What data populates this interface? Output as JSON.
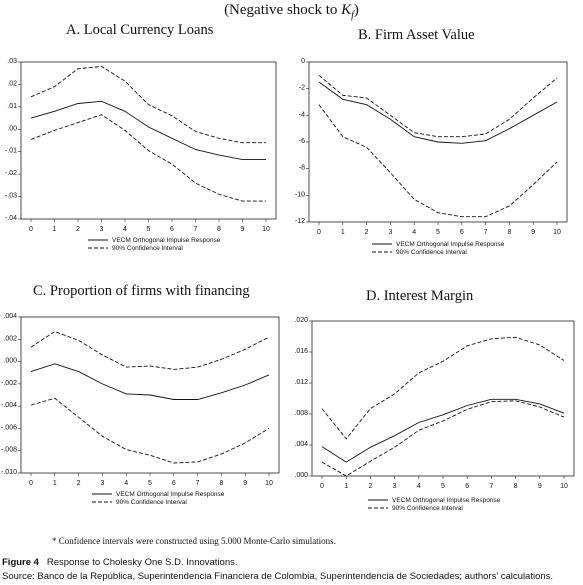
{
  "header": {
    "prefix": "(Negative shock to ",
    "var": "K",
    "sub": "f",
    "suffix": ")"
  },
  "note": "* Confidence intervals were constructed using 5.000 Monte-Carlo simulations.",
  "caption": {
    "label": "Figure 4",
    "text": "Response to Cholesky One S.D. Innovations."
  },
  "source": "Source: Banco de la República, Superintendencia Financiera de Colombia, Superintendencia de Sociedades; authors' calculations.",
  "chart_data": [
    {
      "type": "line",
      "title": "A. Local Currency Loans",
      "x": [
        0,
        1,
        2,
        3,
        4,
        5,
        6,
        7,
        8,
        9,
        10
      ],
      "xticks": [
        "0",
        "1",
        "2",
        "3",
        "4",
        "5",
        "6",
        "7",
        "8",
        "9",
        "10"
      ],
      "ylim": [
        -0.04,
        0.03
      ],
      "yticks": [
        0.03,
        0.02,
        0.01,
        0.0,
        -0.01,
        -0.02,
        -0.03,
        -0.04
      ],
      "ytick_labels": [
        ".03",
        ".02",
        ".01",
        ".00",
        "-.01",
        "-.02",
        "-.03",
        "-.04"
      ],
      "legend": [
        "VECM Orthogonal Impulse Response",
        "90% Confidence Interval"
      ],
      "series": [
        {
          "name": "VECM Orthogonal Impulse Response",
          "style": "solid",
          "x": [
            0,
            1,
            2,
            3,
            4,
            5,
            6,
            7,
            8,
            9,
            10
          ],
          "values": [
            0.005,
            0.008,
            0.0115,
            0.0125,
            0.008,
            0.001,
            -0.004,
            -0.009,
            -0.0115,
            -0.0135,
            -0.0135
          ]
        },
        {
          "name": "90% Confidence Interval",
          "style": "dashed",
          "x": [
            1,
            2,
            3,
            4,
            5,
            6,
            7,
            8,
            9,
            10
          ],
          "values": [
            0.019,
            0.027,
            0.028,
            0.0215,
            0.011,
            0.006,
            -0.001,
            -0.004,
            -0.006,
            -0.006
          ],
          "x0": 0,
          "v0": 0.0145
        },
        {
          "name": "90% Confidence Interval",
          "style": "dashed",
          "x": [
            0,
            1,
            2,
            3,
            4,
            5,
            6,
            7,
            8,
            9,
            10
          ],
          "values": [
            -0.0045,
            -0.0005,
            0.003,
            0.0065,
            -0.0005,
            -0.0095,
            -0.0155,
            -0.024,
            -0.029,
            -0.032,
            -0.032
          ]
        }
      ]
    },
    {
      "type": "line",
      "title": "B. Firm Asset Value",
      "x": [
        0,
        1,
        2,
        3,
        4,
        5,
        6,
        7,
        8,
        9,
        10
      ],
      "xticks": [
        "0",
        "1",
        "2",
        "3",
        "4",
        "5",
        "6",
        "7",
        "8",
        "9",
        "10"
      ],
      "ylim": [
        -12,
        0
      ],
      "yticks": [
        0,
        -2,
        -4,
        -6,
        -8,
        -10,
        -12
      ],
      "ytick_labels": [
        "0",
        "-2",
        "-4",
        "-6",
        "-8",
        "-10",
        "-12"
      ],
      "legend": [
        "VECM Orthogonal Impulse Response",
        "90% Confidence Interval"
      ],
      "series": [
        {
          "name": "VECM Orthogonal Impulse Response",
          "style": "solid",
          "x": [
            0,
            1,
            2,
            3,
            4,
            5,
            6,
            7,
            8,
            9,
            10
          ],
          "values": [
            -1.5,
            -2.8,
            -3.2,
            -4.3,
            -5.6,
            -6.0,
            -6.1,
            -5.9,
            -5.0,
            -4.0,
            -3.0
          ]
        },
        {
          "name": "90% Confidence Interval",
          "style": "dashed",
          "x": [
            0,
            1,
            2,
            3,
            4,
            5,
            6,
            7,
            8,
            9,
            10
          ],
          "values": [
            -1.0,
            -2.5,
            -2.7,
            -4.0,
            -5.3,
            -5.6,
            -5.6,
            -5.4,
            -4.3,
            -2.7,
            -1.2
          ]
        },
        {
          "name": "90% Confidence Interval",
          "style": "dashed",
          "x": [
            0,
            1,
            2,
            3,
            4,
            5,
            6,
            7,
            8,
            9,
            10
          ],
          "values": [
            -3.2,
            -5.6,
            -6.4,
            -8.3,
            -10.3,
            -11.3,
            -11.6,
            -11.6,
            -10.8,
            -9.2,
            -7.5
          ]
        }
      ]
    },
    {
      "type": "line",
      "title": "C. Proportion of firms with financing",
      "x": [
        0,
        1,
        2,
        3,
        4,
        5,
        6,
        7,
        8,
        9,
        10
      ],
      "xticks": [
        "0",
        "1",
        "2",
        "3",
        "4",
        "5",
        "6",
        "7",
        "8",
        "9",
        "10"
      ],
      "ylim": [
        -0.01,
        0.004
      ],
      "yticks": [
        0.004,
        0.002,
        0.0,
        -0.002,
        -0.004,
        -0.006,
        -0.008,
        -0.01
      ],
      "ytick_labels": [
        ".004",
        ".002",
        ".000",
        "-.002",
        "-.004",
        "-.006",
        "-.008",
        "-.010"
      ],
      "legend": [
        "VECM Orthogonal Impulse Response",
        "90% Confidence Interval"
      ],
      "series": [
        {
          "name": "VECM Orthogonal Impulse Response",
          "style": "solid",
          "x": [
            0,
            1,
            2,
            3,
            4,
            5,
            6,
            7,
            8,
            9,
            10
          ],
          "values": [
            -0.0009,
            -0.0002,
            -0.0009,
            -0.002,
            -0.0029,
            -0.003,
            -0.0034,
            -0.0034,
            -0.0028,
            -0.0021,
            -0.0012
          ]
        },
        {
          "name": "90% Confidence Interval",
          "style": "dashed",
          "x": [
            0,
            1,
            2,
            3,
            4,
            5,
            6,
            7,
            8,
            9,
            10
          ],
          "values": [
            0.0013,
            0.0027,
            0.0019,
            0.0006,
            -0.0005,
            -0.0004,
            -0.0007,
            -0.0005,
            0.0002,
            0.0011,
            0.0022
          ]
        },
        {
          "name": "90% Confidence Interval",
          "style": "dashed",
          "x": [
            0,
            1,
            2,
            3,
            4,
            5,
            6,
            7,
            8,
            9,
            10
          ],
          "values": [
            -0.0039,
            -0.0033,
            -0.005,
            -0.0067,
            -0.0079,
            -0.0084,
            -0.0091,
            -0.009,
            -0.0083,
            -0.0073,
            -0.006
          ]
        }
      ]
    },
    {
      "type": "line",
      "title": "D. Interest Margin",
      "x": [
        0,
        1,
        2,
        3,
        4,
        5,
        6,
        7,
        8,
        9,
        10
      ],
      "xticks": [
        "0",
        "1",
        "2",
        "3",
        "4",
        "5",
        "6",
        "7",
        "8",
        "9",
        "10"
      ],
      "ylim": [
        0.0,
        0.02
      ],
      "yticks": [
        0.02,
        0.016,
        0.012,
        0.008,
        0.004,
        0.0
      ],
      "ytick_labels": [
        ".020",
        ".016",
        ".012",
        ".008",
        ".004",
        ".000"
      ],
      "legend": [
        "VECM Orthogonal Impulse Response",
        "90% Confidence Interval"
      ],
      "series": [
        {
          "name": "VECM Orthogonal Impulse Response",
          "style": "solid",
          "x": [
            0,
            1,
            2,
            3,
            4,
            5,
            6,
            7,
            8,
            9,
            10
          ],
          "values": [
            0.0038,
            0.0018,
            0.0037,
            0.0052,
            0.0069,
            0.0079,
            0.0091,
            0.0099,
            0.0099,
            0.0093,
            0.0081
          ]
        },
        {
          "name": "90% Confidence Interval",
          "style": "dashed",
          "x": [
            0,
            1,
            2,
            3,
            4,
            5,
            6,
            7,
            8,
            9,
            10
          ],
          "values": [
            0.0087,
            0.0048,
            0.0087,
            0.0106,
            0.0133,
            0.0148,
            0.0168,
            0.0177,
            0.0179,
            0.0169,
            0.0149
          ]
        },
        {
          "name": "90% Confidence Interval",
          "style": "dashed",
          "x": [
            0,
            1,
            2,
            3,
            4,
            5,
            6,
            7,
            8,
            9,
            10
          ],
          "values": [
            0.0018,
            0.0,
            0.0019,
            0.0037,
            0.0059,
            0.0071,
            0.0086,
            0.0096,
            0.0097,
            0.0089,
            0.0076
          ]
        }
      ]
    }
  ]
}
